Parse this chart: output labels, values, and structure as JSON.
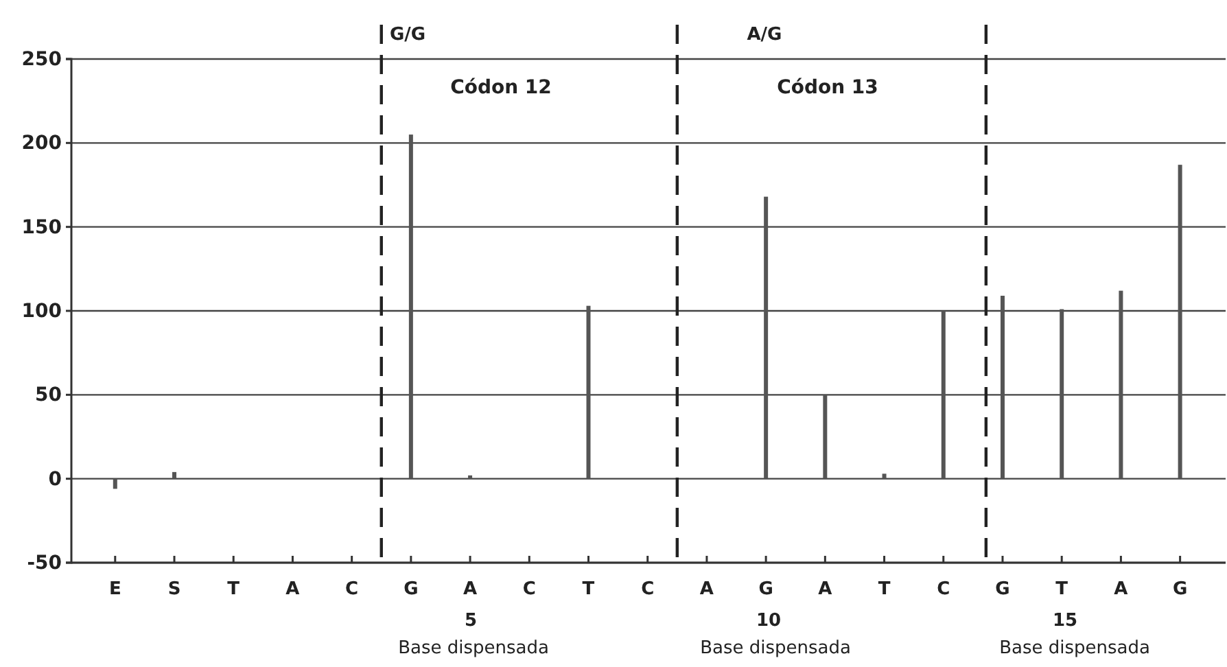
{
  "chart_data": {
    "type": "bar",
    "categories": [
      "E",
      "S",
      "T",
      "A",
      "C",
      "G",
      "A",
      "C",
      "T",
      "C",
      "A",
      "G",
      "A",
      "T",
      "C",
      "G",
      "T",
      "A",
      "G"
    ],
    "ylim": [
      -50,
      250
    ],
    "yticks": [
      -50,
      0,
      50,
      100,
      150,
      200,
      250
    ],
    "grid": "y",
    "series": [
      {
        "color": "#555555",
        "values": [
          -6,
          4,
          0,
          0,
          0,
          205,
          2,
          0,
          103,
          0,
          0,
          168,
          50,
          3,
          100,
          109,
          101,
          112,
          187
        ]
      }
    ],
    "annotations": [
      "G/G",
      "Códon 12",
      "A/G",
      "Códon 13",
      "5",
      "Base dispensada",
      "10",
      "Base dispensada",
      "15",
      "Base dispensada"
    ]
  }
}
